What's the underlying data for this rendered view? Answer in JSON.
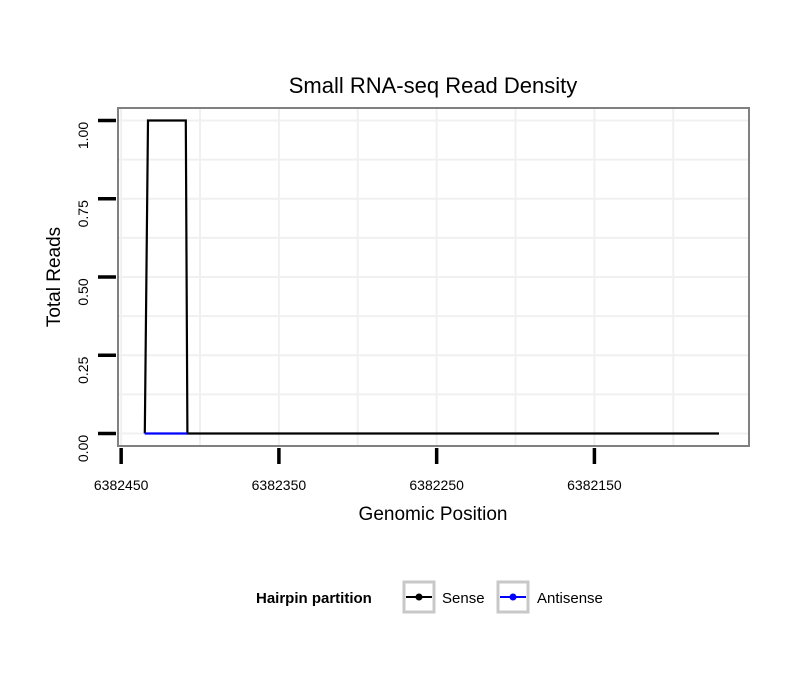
{
  "chart_data": {
    "type": "line",
    "title": "Small RNA-seq Read Density",
    "xlabel": "Genomic Position",
    "ylabel": "Total Reads",
    "x_reversed": true,
    "xlim": [
      6382452,
      6382052
    ],
    "ylim": [
      -0.04,
      1.04
    ],
    "x_ticks": [
      6382450,
      6382350,
      6382250,
      6382150
    ],
    "x_tick_labels": [
      "6382450",
      "6382350",
      "6382250",
      "6382150"
    ],
    "y_ticks": [
      0,
      0.25,
      0.5,
      0.75,
      1.0
    ],
    "y_tick_labels": [
      "0.00",
      "0.25",
      "0.50",
      "0.75",
      "1.00"
    ],
    "grid": true,
    "legend": {
      "title": "Hairpin partition",
      "position": "bottom"
    },
    "series": [
      {
        "name": "Sense",
        "color": "#000000",
        "points": [
          [
            6382435,
            0
          ],
          [
            6382433,
            1
          ],
          [
            6382409,
            1
          ],
          [
            6382408,
            0
          ],
          [
            6382071,
            0
          ]
        ]
      },
      {
        "name": "Antisense",
        "color": "#0000ff",
        "points": [
          [
            6382435,
            0
          ],
          [
            6382408,
            0
          ]
        ]
      }
    ]
  }
}
